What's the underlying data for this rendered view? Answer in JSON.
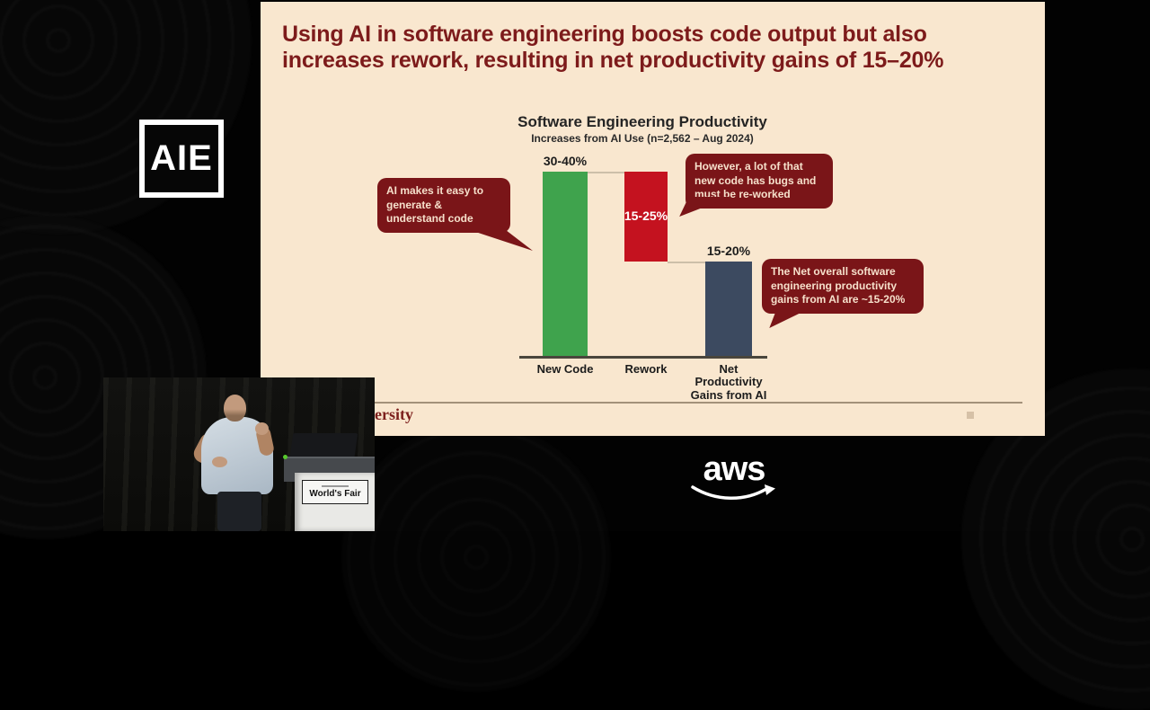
{
  "slide": {
    "title": "Using AI in software engineering boosts code output but also increases rework, resulting in net productivity gains of 15–20%",
    "footer_text": "ersity",
    "background_color": "#f9e7cf",
    "title_color": "#7d1b1b"
  },
  "chart_data": {
    "type": "bar",
    "variant": "waterfall",
    "title": "Software Engineering Productivity",
    "subtitle": "Increases from AI Use (n=2,562 – Aug 2024)",
    "categories": [
      "New Code",
      "Rework",
      "Net Productivity Gains from AI"
    ],
    "ylim": [
      0,
      40
    ],
    "grid": false,
    "legend": false,
    "bars": [
      {
        "category": "New Code",
        "value_label": "30-40%",
        "value_range_pct": [
          30,
          40
        ],
        "role": "increase",
        "color": "#3fa34d",
        "draw_from": 0,
        "draw_to": 35,
        "label_position": "above",
        "label_color": "#1c1c1c"
      },
      {
        "category": "Rework",
        "value_label": "15-25%",
        "value_range_pct": [
          15,
          25
        ],
        "role": "decrease",
        "color": "#c4121f",
        "draw_from": 35,
        "draw_to": 18,
        "label_position": "inside",
        "label_color": "#ffffff"
      },
      {
        "category": "Net Productivity Gains from AI",
        "value_label": "15-20%",
        "value_range_pct": [
          15,
          20
        ],
        "role": "net_total",
        "color": "#3c4a60",
        "draw_from": 0,
        "draw_to": 18,
        "label_position": "above",
        "label_color": "#1c1c1c"
      }
    ],
    "annotations": [
      {
        "text": "AI makes it easy to generate & understand code",
        "points_to": "New Code"
      },
      {
        "text": "However, a lot of that new code has bugs and must be re-worked",
        "points_to": "Rework"
      },
      {
        "text": "The Net overall software engineering productivity gains from AI are ~15-20%",
        "points_to": "Net Productivity Gains from AI"
      }
    ],
    "annotation_style": {
      "background": "#7a1518",
      "text_color": "#f6e0cb"
    }
  },
  "logos": {
    "aie_label": "AIE",
    "aws_label": "aws"
  },
  "webcam": {
    "podium_label": "World's Fair"
  }
}
